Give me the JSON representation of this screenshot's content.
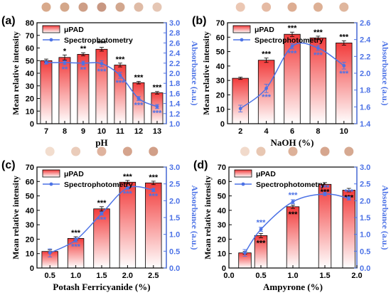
{
  "colors": {
    "bar_top": "#f23b3b",
    "bar_bottom": "#ffffff",
    "line": "#4c72e6",
    "axis_left": "#000000",
    "axis_right": "#4c72e6",
    "error": "#000000"
  },
  "legend": {
    "bar_label": "μPAD",
    "line_label": "Spectrophotometry"
  },
  "chart_data": [
    {
      "panel_label": "(a)",
      "type": "bar",
      "xlabel": "pH",
      "ylabel": "Mean relative intensity",
      "y2label": "Absorbance (a.u.)",
      "categories": [
        "7",
        "8",
        "9",
        "10",
        "11",
        "12",
        "13"
      ],
      "ylim": [
        0,
        80
      ],
      "yticks": [
        "0",
        "10",
        "20",
        "30",
        "40",
        "50",
        "60",
        "70",
        "80"
      ],
      "y2lim": [
        1.0,
        3.0
      ],
      "y2ticks": [
        "1.0",
        "1.2",
        "1.4",
        "1.6",
        "1.8",
        "2.0",
        "2.2",
        "2.4",
        "2.6",
        "2.8",
        "3.0"
      ],
      "series": [
        {
          "name": "μPAD",
          "kind": "bar",
          "x": [
            7,
            8,
            9,
            10,
            11,
            12,
            13
          ],
          "values": [
            50,
            52.5,
            55,
            59,
            46.5,
            32.5,
            24.5
          ],
          "errors": [
            1.2,
            2.0,
            1.2,
            1.5,
            1.5,
            1.0,
            1.0
          ],
          "sig": [
            "",
            "*",
            "**",
            "***",
            "***",
            "***",
            "***"
          ]
        },
        {
          "name": "Spectrophotometry",
          "kind": "line",
          "x": [
            7,
            8,
            9,
            10,
            11,
            12,
            13
          ],
          "values": [
            2.21,
            2.21,
            2.2,
            2.19,
            1.96,
            1.5,
            1.34
          ],
          "errors": [
            0.03,
            0.04,
            0.04,
            0.06,
            0.06,
            0.04,
            0.04
          ],
          "sig": [
            "",
            "**",
            "**",
            "***",
            "***",
            "***",
            "***"
          ]
        }
      ],
      "swatches": [
        "#d4a07e",
        "#cf9d7d",
        "#c99479",
        "#c28c74",
        "#cd9d82",
        "#dcb49c",
        "#e2c0ac"
      ]
    },
    {
      "panel_label": "(b)",
      "type": "bar",
      "xlabel": "NaOH (%)",
      "ylabel": "Mean relative intensity",
      "y2label": "Absorbance (a.u.)",
      "categories": [
        "2",
        "4",
        "6",
        "8",
        "10"
      ],
      "ylim": [
        0,
        70
      ],
      "yticks": [
        "0",
        "10",
        "20",
        "30",
        "40",
        "50",
        "60",
        "70"
      ],
      "y2lim": [
        1.4,
        2.6
      ],
      "y2ticks": [
        "1.4",
        "1.6",
        "1.8",
        "2.0",
        "2.2",
        "2.4",
        "2.6"
      ],
      "series": [
        {
          "name": "μPAD",
          "kind": "bar",
          "x": [
            2,
            4,
            6,
            8,
            10
          ],
          "values": [
            31.5,
            44,
            62,
            59.5,
            56
          ],
          "errors": [
            0.8,
            1.5,
            1.5,
            1.2,
            1.5
          ],
          "sig": [
            "",
            "***",
            "***",
            "***",
            "***"
          ]
        },
        {
          "name": "Spectrophotometry",
          "kind": "line",
          "x": [
            2,
            4,
            6,
            8,
            10
          ],
          "values": [
            1.58,
            1.82,
            2.32,
            2.3,
            2.09
          ],
          "errors": [
            0.04,
            0.05,
            0.03,
            0.03,
            0.04
          ],
          "sig": [
            "",
            "***",
            "***",
            "***",
            "***"
          ]
        }
      ],
      "swatches": [
        "#e9c1ab",
        "#e2b399",
        "#d9a486",
        "#d9a789",
        "#dcae92"
      ]
    },
    {
      "panel_label": "(c)",
      "type": "bar",
      "xlabel": "Potash Ferricyanide (%)",
      "ylabel": "Mean relative intensity",
      "y2label": "Absorbance (a.u.)",
      "categories": [
        "0.5",
        "1.0",
        "1.5",
        "2.0",
        "2.5"
      ],
      "ylim": [
        0,
        70
      ],
      "yticks": [
        "0",
        "10",
        "20",
        "30",
        "40",
        "50",
        "60",
        "70"
      ],
      "y2lim": [
        0.0,
        3.0
      ],
      "y2ticks": [
        "0.0",
        "0.5",
        "1.0",
        "1.5",
        "2.0",
        "2.5",
        "3.0"
      ],
      "series": [
        {
          "name": "μPAD",
          "kind": "bar",
          "x": [
            0.5,
            1.0,
            1.5,
            2.0,
            2.5
          ],
          "values": [
            11.5,
            20.5,
            41,
            59.5,
            59
          ],
          "errors": [
            1.0,
            1.2,
            1.5,
            1.2,
            1.2
          ],
          "sig": [
            "",
            "***",
            "***",
            "***",
            "***"
          ]
        },
        {
          "name": "Spectrophotometry",
          "kind": "line",
          "x": [
            0.5,
            1.0,
            1.5,
            2.0,
            2.5
          ],
          "values": [
            0.45,
            0.83,
            1.62,
            2.38,
            2.32
          ],
          "errors": [
            0.12,
            0.06,
            0.05,
            0.04,
            0.05
          ],
          "sig": [
            "",
            "***",
            "***",
            "***",
            "***"
          ]
        }
      ],
      "swatches": [
        "#f1d9c9",
        "#e8c6b2",
        "#dcab93",
        "#d09a81",
        "#cc957b"
      ]
    },
    {
      "panel_label": "(d)",
      "type": "bar",
      "xlabel": "Ampyrone (%)",
      "ylabel": "Mean relative intensity",
      "y2label": "Absorbance (a.u.)",
      "categories": [
        "0.0",
        "0.5",
        "1.0",
        "1.5",
        "2.0"
      ],
      "ylim": [
        0,
        70
      ],
      "yticks": [
        "0",
        "10",
        "20",
        "30",
        "40",
        "50",
        "60",
        "70"
      ],
      "y2lim": [
        0.0,
        3.0
      ],
      "y2ticks": [
        "0.0",
        "0.5",
        "1.0",
        "1.5",
        "2.0",
        "2.5",
        "3.0"
      ],
      "xlim": [
        0.0,
        2.0
      ],
      "xticks": [
        "0.0",
        "0.5",
        "1.0",
        "1.5",
        "2.0"
      ],
      "series": [
        {
          "name": "μPAD",
          "kind": "bar",
          "x": [
            0.25,
            0.5,
            1.0,
            1.5,
            1.875
          ],
          "values": [
            10.5,
            22.5,
            42.5,
            58,
            54
          ],
          "errors": [
            1.0,
            1.5,
            1.2,
            1.2,
            1.2
          ],
          "sig": [
            "",
            "***",
            "***",
            "***",
            "***"
          ]
        },
        {
          "name": "Spectrophotometry",
          "kind": "line",
          "x": [
            0.25,
            0.5,
            1.0,
            1.5,
            1.875
          ],
          "values": [
            0.45,
            1.15,
            1.97,
            2.2,
            2.07
          ],
          "errors": [
            0.1,
            0.06,
            0.06,
            0.05,
            0.05
          ],
          "sig": [
            "",
            "***",
            "***",
            "***",
            "***"
          ]
        }
      ],
      "swatches": [
        "#efd6c5",
        "#e6c1aa",
        "#d9a88e",
        "#d19c82",
        "#d2a085"
      ]
    }
  ]
}
